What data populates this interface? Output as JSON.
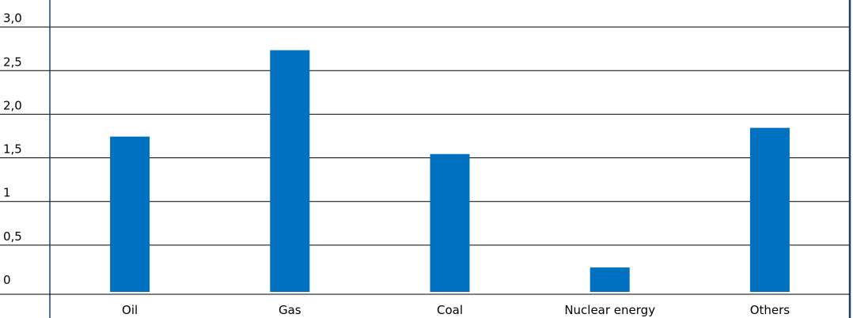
{
  "chart_data": {
    "type": "bar",
    "categories": [
      "Oil",
      "Gas",
      "Coal",
      "Nuclear energy",
      "Others"
    ],
    "values": [
      1.78,
      2.77,
      1.58,
      0.28,
      1.88
    ],
    "title": "",
    "xlabel": "",
    "ylabel": "",
    "ylim": [
      0,
      3.2
    ],
    "yticks": [
      {
        "value": 0,
        "label": "0"
      },
      {
        "value": 0.5,
        "label": "0,5"
      },
      {
        "value": 1,
        "label": "1"
      },
      {
        "value": 1.5,
        "label": "1,5"
      },
      {
        "value": 2,
        "label": "2,0"
      },
      {
        "value": 2.5,
        "label": "2,5"
      },
      {
        "value": 3,
        "label": "3,0"
      }
    ],
    "grid": true,
    "legend": "none",
    "colors": {
      "bar": "#0070c0",
      "grid": "#000000",
      "frame": "#1f3f66",
      "text": "#000000"
    }
  }
}
